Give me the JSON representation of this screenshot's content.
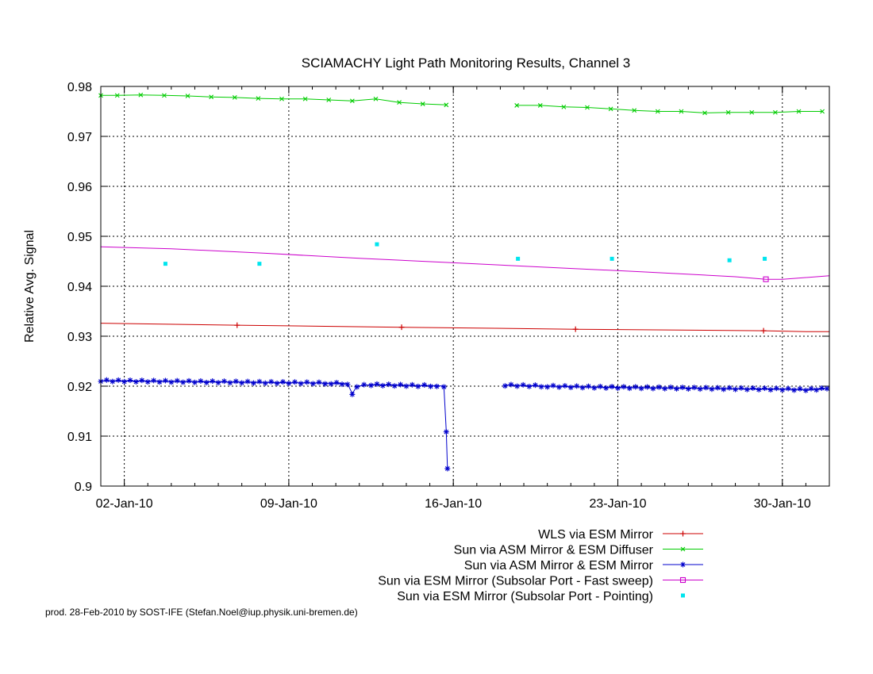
{
  "chart_data": {
    "type": "line",
    "title": "SCIAMACHY Light Path Monitoring Results, Channel 3",
    "xlabel": "",
    "ylabel": "Relative Avg. Signal",
    "x_ticks": [
      "02-Jan-10",
      "09-Jan-10",
      "16-Jan-10",
      "23-Jan-10",
      "30-Jan-10"
    ],
    "x_tick_days": [
      2,
      9,
      16,
      23,
      30
    ],
    "xlim_days": [
      1,
      32
    ],
    "y_ticks": [
      "0.9",
      "0.91",
      "0.92",
      "0.93",
      "0.94",
      "0.95",
      "0.96",
      "0.97",
      "0.98"
    ],
    "ylim": [
      0.9,
      0.98
    ],
    "grid": true,
    "legend_position": "bottom-right",
    "x_unit": "day of Jan-2010",
    "series": [
      {
        "name": "WLS via ESM Mirror",
        "color": "#cc0000",
        "marker": "plus",
        "draw_line": true,
        "points": [
          [
            1.0,
            0.9326
          ],
          [
            6.8,
            0.9322
          ],
          [
            13.8,
            0.9318
          ],
          [
            21.2,
            0.9314
          ],
          [
            29.2,
            0.9311
          ],
          [
            31.0,
            0.9309
          ],
          [
            32.0,
            0.9309
          ]
        ],
        "markers_at": [
          [
            6.8,
            0.9322
          ],
          [
            13.8,
            0.9318
          ],
          [
            21.2,
            0.9314
          ],
          [
            29.2,
            0.9311
          ]
        ]
      },
      {
        "name": "Sun via ASM Mirror & ESM Diffuser",
        "color": "#00cc00",
        "marker": "x",
        "draw_line": true,
        "segments": [
          [
            [
              1.0,
              0.9782
            ],
            [
              1.7,
              0.9782
            ],
            [
              2.7,
              0.9783
            ],
            [
              3.7,
              0.9782
            ],
            [
              4.7,
              0.9781
            ],
            [
              5.7,
              0.9779
            ],
            [
              6.7,
              0.9778
            ],
            [
              7.7,
              0.9776
            ],
            [
              8.7,
              0.9775
            ],
            [
              9.7,
              0.9775
            ],
            [
              10.7,
              0.9773
            ],
            [
              11.7,
              0.9771
            ],
            [
              12.7,
              0.9775
            ],
            [
              13.7,
              0.9768
            ],
            [
              14.7,
              0.9765
            ],
            [
              15.7,
              0.9763
            ]
          ],
          [
            [
              18.7,
              0.9762
            ],
            [
              19.7,
              0.9762
            ],
            [
              20.7,
              0.9759
            ],
            [
              21.7,
              0.9758
            ],
            [
              22.7,
              0.9755
            ],
            [
              23.7,
              0.9752
            ],
            [
              24.7,
              0.975
            ],
            [
              25.7,
              0.975
            ],
            [
              26.7,
              0.9747
            ],
            [
              27.7,
              0.9748
            ],
            [
              28.7,
              0.9748
            ],
            [
              29.7,
              0.9748
            ],
            [
              30.7,
              0.975
            ],
            [
              31.7,
              0.975
            ]
          ]
        ]
      },
      {
        "name": "Sun via ASM Mirror & ESM Mirror",
        "color": "#0000cc",
        "marker": "star",
        "draw_line": true,
        "segments": [
          [
            [
              1.0,
              0.9211
            ],
            [
              3.0,
              0.921
            ],
            [
              5.0,
              0.9209
            ],
            [
              7.0,
              0.9208
            ],
            [
              9.0,
              0.9207
            ],
            [
              10.8,
              0.9206
            ],
            [
              11.5,
              0.9205
            ],
            [
              11.7,
              0.9185
            ],
            [
              11.9,
              0.92
            ],
            [
              12.5,
              0.9203
            ],
            [
              13.5,
              0.9202
            ],
            [
              14.5,
              0.9201
            ],
            [
              15.3,
              0.9201
            ],
            [
              15.6,
              0.92
            ],
            [
              15.7,
              0.911
            ],
            [
              15.75,
              0.9035
            ]
          ],
          [
            [
              18.2,
              0.9202
            ],
            [
              20.0,
              0.92
            ],
            [
              22.0,
              0.9198
            ],
            [
              24.0,
              0.9197
            ],
            [
              26.0,
              0.9196
            ],
            [
              28.0,
              0.9195
            ],
            [
              30.0,
              0.9194
            ],
            [
              31.0,
              0.9193
            ],
            [
              31.9,
              0.9195
            ]
          ]
        ]
      },
      {
        "name": "Sun via ESM Mirror (Subsolar Port - Fast sweep)",
        "color": "#cc00cc",
        "marker": "square",
        "draw_line": true,
        "points": [
          [
            1.0,
            0.9479
          ],
          [
            4.0,
            0.9475
          ],
          [
            8.0,
            0.9466
          ],
          [
            12.0,
            0.9456
          ],
          [
            16.0,
            0.9447
          ],
          [
            20.0,
            0.9438
          ],
          [
            24.0,
            0.9429
          ],
          [
            28.0,
            0.9419
          ],
          [
            29.3,
            0.9414
          ],
          [
            30.0,
            0.9414
          ],
          [
            32.0,
            0.9421
          ]
        ],
        "markers_at": [
          [
            29.3,
            0.9414
          ]
        ]
      },
      {
        "name": "Sun via ESM Mirror (Subsolar Port - Pointing)",
        "color": "#00e5ee",
        "marker": "dot",
        "draw_line": false,
        "points": [
          [
            3.75,
            0.9445
          ],
          [
            7.75,
            0.9445
          ],
          [
            12.75,
            0.9484
          ],
          [
            18.75,
            0.9455
          ],
          [
            22.75,
            0.9455
          ],
          [
            27.75,
            0.9452
          ],
          [
            29.25,
            0.9455
          ]
        ]
      }
    ]
  },
  "footer": {
    "credit": "prod. 28-Feb-2010 by SOST-IFE (Stefan.Noel@iup.physik.uni-bremen.de)"
  }
}
